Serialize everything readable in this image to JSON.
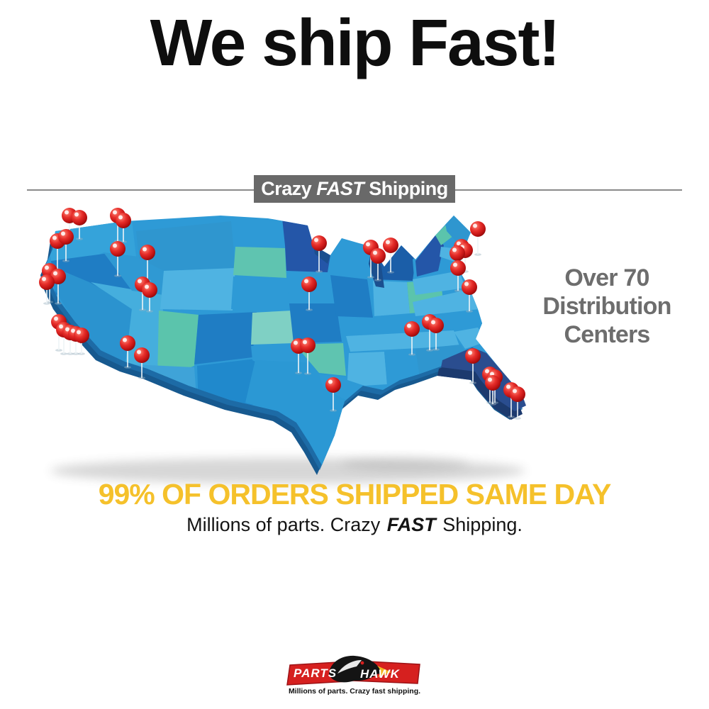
{
  "headline": {
    "text": "We ship Fast!",
    "color": "#0e0e0e"
  },
  "ribbon": {
    "prefix": "Crazy",
    "emphasis": "FAST",
    "suffix": "Shipping",
    "bg": "#696969",
    "text_color": "#ffffff"
  },
  "distribution_note": {
    "lines": [
      "Over 70",
      "Distribution",
      "Centers"
    ],
    "color": "#6d6d6d"
  },
  "claim": {
    "text": "99% OF ORDERS SHIPPED SAME DAY",
    "color": "#F5C12B"
  },
  "subclaim": {
    "prefix": "Millions of parts. Crazy",
    "emphasis": "FAST",
    "suffix": "Shipping."
  },
  "logo": {
    "left_word": "PARTS",
    "right_word": "HAWK",
    "tagline": "Millions of parts. Crazy fast shipping.",
    "banner_color": "#D6201F",
    "banner_edge": "#9C1216",
    "beak_color": "#F2B51E"
  },
  "map": {
    "description": "3D USA map with red location pins marking distribution centers",
    "pin_color": "#D71F1F",
    "state_palette": [
      "#2E9AD6",
      "#1F7DC4",
      "#4FB3E2",
      "#5BC4AC",
      "#7FD0C4",
      "#2F96CF",
      "#2456A8",
      "#3FAADC",
      "#2A4D8F",
      "#45AEDD"
    ],
    "pins": [
      [
        72,
        18,
        34
      ],
      [
        86,
        21,
        30
      ],
      [
        140,
        18,
        36
      ],
      [
        148,
        25,
        30
      ],
      [
        55,
        54,
        40
      ],
      [
        67,
        48,
        34
      ],
      [
        140,
        65,
        38
      ],
      [
        182,
        70,
        40
      ],
      [
        44,
        96,
        44
      ],
      [
        56,
        104,
        38
      ],
      [
        40,
        112,
        30
      ],
      [
        175,
        115,
        36
      ],
      [
        185,
        123,
        30
      ],
      [
        57,
        168,
        40
      ],
      [
        64,
        179,
        34
      ],
      [
        73,
        183,
        30
      ],
      [
        81,
        185,
        28
      ],
      [
        89,
        187,
        26
      ],
      [
        154,
        198,
        34
      ],
      [
        174,
        215,
        32
      ],
      [
        424,
        57,
        40
      ],
      [
        410,
        115,
        36
      ],
      [
        497,
        63,
        42
      ],
      [
        507,
        75,
        34
      ],
      [
        525,
        60,
        38
      ],
      [
        648,
        37,
        36
      ],
      [
        625,
        62,
        34
      ],
      [
        630,
        67,
        30
      ],
      [
        619,
        71,
        28
      ],
      [
        620,
        92,
        32
      ],
      [
        636,
        119,
        34
      ],
      [
        555,
        178,
        36
      ],
      [
        580,
        168,
        40
      ],
      [
        589,
        173,
        34
      ],
      [
        395,
        202,
        38
      ],
      [
        408,
        201,
        40
      ],
      [
        444,
        257,
        36
      ],
      [
        641,
        216,
        38
      ],
      [
        665,
        242,
        40
      ],
      [
        672,
        246,
        36
      ],
      [
        669,
        254,
        30
      ],
      [
        695,
        264,
        38
      ],
      [
        704,
        270,
        34
      ]
    ]
  }
}
